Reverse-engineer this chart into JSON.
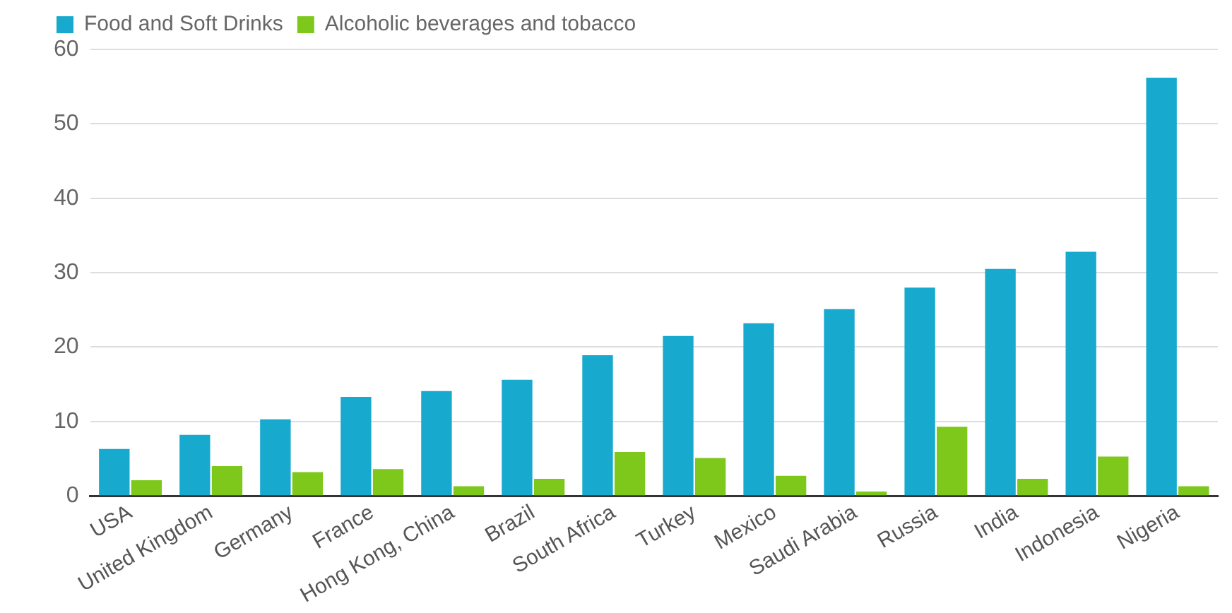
{
  "chart_data": {
    "type": "bar",
    "categories": [
      "USA",
      "United Kingdom",
      "Germany",
      "France",
      "Hong Kong, China",
      "Brazil",
      "South Africa",
      "Turkey",
      "Mexico",
      "Saudi Arabia",
      "Russia",
      "India",
      "Indonesia",
      "Nigeria"
    ],
    "series": [
      {
        "name": "Food and Soft Drinks",
        "color": "#17a9ce",
        "values": [
          6.3,
          8.2,
          10.3,
          13.3,
          14.1,
          15.6,
          18.9,
          21.5,
          23.2,
          25.1,
          28,
          30.5,
          32.8,
          56.2
        ]
      },
      {
        "name": "Alcoholic beverages and tobacco",
        "color": "#7ec81c",
        "values": [
          2.1,
          4,
          3.2,
          3.6,
          1.3,
          2.3,
          5.9,
          5.1,
          2.7,
          0.6,
          9.3,
          2.3,
          5.3,
          1.3
        ]
      }
    ],
    "ylim": [
      0,
      60
    ],
    "yticks": [
      0,
      10,
      20,
      30,
      40,
      50,
      60
    ],
    "grid": "y",
    "legend": "top left"
  }
}
